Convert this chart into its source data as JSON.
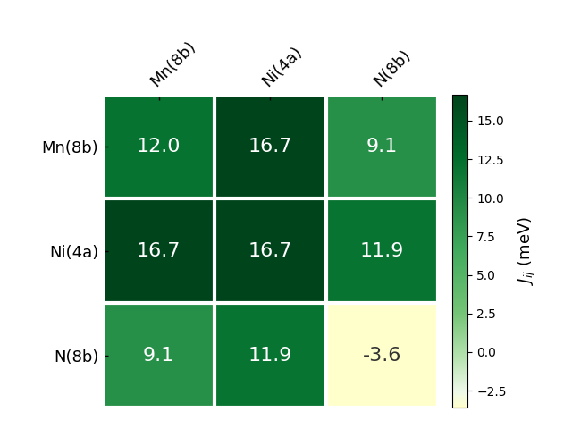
{
  "matrix": [
    [
      12.0,
      16.7,
      9.1
    ],
    [
      16.7,
      16.7,
      11.9
    ],
    [
      9.1,
      11.9,
      -3.6
    ]
  ],
  "row_labels": [
    "Mn(8b)",
    "Ni(4a)",
    "N(8b)"
  ],
  "col_labels": [
    "Mn(8b)",
    "Ni(4a)",
    "N(8b)"
  ],
  "colorbar_label": "$J_{ij}$ (meV)",
  "vmin": -3.6,
  "vmax": 16.7,
  "figsize": [
    6.4,
    4.8
  ],
  "dpi": 100,
  "cell_text_fontsize": 16,
  "axis_label_fontsize": 13,
  "colorbar_label_fontsize": 13,
  "colorbar_ticks": [
    -2.5,
    0.0,
    2.5,
    5.0,
    7.5,
    10.0,
    12.5,
    15.0
  ],
  "linewidth": 3,
  "linecolor": "white",
  "cmap_colors": [
    "#ffffcc",
    "#f7fcf5",
    "#c7e9c0",
    "#74c476",
    "#31a354",
    "#238b45",
    "#006d2c",
    "#00441b"
  ],
  "text_color_threshold": 0.35
}
